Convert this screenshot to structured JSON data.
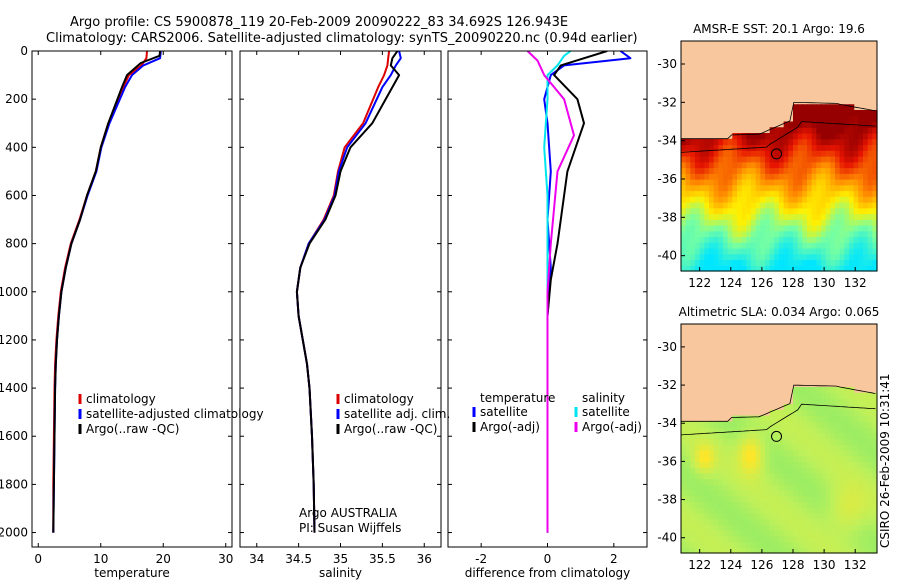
{
  "header": {
    "title_line1": "Argo profile: CS 5900878_119 20-Feb-2009 20090222_83 34.692S 126.943E",
    "title_line2": "Climatology: CARS2006. Satellite-adjusted climatology: synTS_20090220.nc (0.94d earlier)"
  },
  "side_label": "CSIRO 26-Feb-2009 10:31:41",
  "colors": {
    "climatology": "#dd0000",
    "satellite": "#0000ff",
    "argo": "#000000",
    "sal_sat": "#00e5ee",
    "sal_argo": "#ee00ee",
    "land": "#f9c79d"
  },
  "chart_data": [
    {
      "type": "line",
      "id": "temperature",
      "xlabel": "temperature",
      "ylabel": "",
      "xlim": [
        -1,
        31
      ],
      "ylim": [
        2060,
        0
      ],
      "y_reversed": true,
      "xticks": [
        0,
        10,
        20,
        30
      ],
      "xtick_labels": [
        "0",
        "10",
        "20",
        "30"
      ],
      "yticks": [
        0,
        200,
        400,
        600,
        800,
        1000,
        1200,
        1400,
        1600,
        1800,
        2000
      ],
      "ytick_labels": [
        "0",
        "200",
        "400",
        "600",
        "800",
        "1000",
        "1200",
        "1400",
        "1600",
        "1800",
        "2000"
      ],
      "legend": {
        "placement": "lower-right",
        "entries": [
          "climatology",
          "satellite-adjusted climatology",
          "Argo(..raw -QC)"
        ]
      },
      "series": [
        {
          "name": "climatology",
          "color": "#dd0000",
          "x": [
            17.4,
            17.3,
            16.5,
            14.5,
            13.6,
            11.2,
            10.0,
            9.2,
            7.8,
            6.6,
            5.2,
            4.3,
            3.6,
            3.2,
            2.9,
            2.7,
            2.6,
            2.5,
            2.4,
            2.4
          ],
          "y": [
            0,
            30,
            60,
            100,
            150,
            300,
            400,
            500,
            600,
            700,
            800,
            900,
            1000,
            1100,
            1200,
            1300,
            1400,
            1600,
            1800,
            2000
          ]
        },
        {
          "name": "satellite-adjusted climatology",
          "color": "#0000ff",
          "x": [
            19.6,
            19.5,
            16.8,
            15.0,
            13.9,
            11.4,
            10.1,
            9.3,
            7.9,
            6.7,
            5.3,
            4.4,
            3.7,
            3.3,
            3.0,
            2.8,
            2.7,
            2.6,
            2.5,
            2.4
          ],
          "y": [
            0,
            30,
            60,
            100,
            150,
            300,
            400,
            500,
            600,
            700,
            800,
            900,
            1000,
            1100,
            1200,
            1300,
            1400,
            1600,
            1800,
            2000
          ]
        },
        {
          "name": "Argo(..raw -QC)",
          "color": "#000000",
          "x": [
            19.5,
            19.4,
            16.4,
            14.2,
            13.4,
            11.2,
            10.0,
            9.2,
            7.8,
            6.7,
            5.3,
            4.4,
            3.7,
            3.3,
            3.0,
            2.8,
            2.7,
            2.6,
            2.5,
            2.4
          ],
          "y": [
            0,
            20,
            50,
            100,
            150,
            300,
            400,
            500,
            600,
            700,
            800,
            900,
            1000,
            1100,
            1200,
            1300,
            1400,
            1600,
            1800,
            2000
          ]
        }
      ]
    },
    {
      "type": "line",
      "id": "salinity",
      "xlabel": "salinity",
      "ylabel": "",
      "xlim": [
        33.8,
        36.2
      ],
      "ylim": [
        2060,
        0
      ],
      "y_reversed": true,
      "xticks": [
        34,
        34.5,
        35,
        35.5,
        36
      ],
      "xtick_labels": [
        "34",
        "34.5",
        "35",
        "35.5",
        "36"
      ],
      "legend": {
        "placement": "lower-right",
        "entries": [
          "climatology",
          "satellite adj. clim.",
          "Argo(..raw -QC)"
        ]
      },
      "annotations": [
        "Argo AUSTRALIA",
        "PI: Susan Wijffels"
      ],
      "series": [
        {
          "name": "climatology",
          "color": "#dd0000",
          "x": [
            35.58,
            35.57,
            35.56,
            35.52,
            35.45,
            35.27,
            35.05,
            34.97,
            34.92,
            34.8,
            34.62,
            34.52,
            34.48,
            34.5,
            34.55,
            34.6,
            34.63,
            34.66,
            34.68,
            34.69
          ],
          "y": [
            0,
            30,
            60,
            100,
            150,
            300,
            400,
            500,
            600,
            700,
            800,
            900,
            1000,
            1100,
            1200,
            1300,
            1400,
            1600,
            1800,
            2000
          ]
        },
        {
          "name": "satellite adj. clim.",
          "color": "#0000ff",
          "x": [
            35.7,
            35.72,
            35.66,
            35.6,
            35.5,
            35.3,
            35.08,
            34.98,
            34.93,
            34.81,
            34.62,
            34.52,
            34.48,
            34.5,
            34.55,
            34.6,
            34.63,
            34.66,
            34.68,
            34.69
          ],
          "y": [
            0,
            30,
            60,
            100,
            150,
            300,
            400,
            500,
            600,
            700,
            800,
            900,
            1000,
            1100,
            1200,
            1300,
            1400,
            1600,
            1800,
            2000
          ]
        },
        {
          "name": "Argo(..raw -QC)",
          "color": "#000000",
          "x": [
            35.68,
            35.62,
            35.6,
            35.7,
            35.62,
            35.38,
            35.12,
            35.0,
            34.94,
            34.82,
            34.63,
            34.52,
            34.48,
            34.5,
            34.55,
            34.6,
            34.63,
            34.66,
            34.68,
            34.69
          ],
          "y": [
            0,
            30,
            60,
            100,
            150,
            300,
            400,
            500,
            600,
            700,
            800,
            900,
            1000,
            1100,
            1200,
            1300,
            1400,
            1600,
            1800,
            2000
          ]
        }
      ]
    },
    {
      "type": "line",
      "id": "difference",
      "xlabel": "difference from climatology",
      "ylabel": "",
      "xlim": [
        -3,
        3
      ],
      "ylim": [
        2060,
        0
      ],
      "y_reversed": true,
      "xticks": [
        -2,
        0,
        2
      ],
      "xtick_labels": [
        "-2",
        "0",
        "2"
      ],
      "legend": {
        "placement": "center-left",
        "headers": [
          "temperature",
          "salinity"
        ],
        "entries": [
          "satellite",
          "Argo(-adj)",
          "satellite",
          "Argo(-adj)"
        ]
      },
      "series": [
        {
          "name": "temperature satellite",
          "color": "#0000ff",
          "x": [
            2.2,
            2.5,
            0.5,
            0.1,
            -0.1,
            0.0,
            0.1,
            0.0,
            0.1,
            0.0,
            0.0,
            0.0,
            0.0,
            0.0
          ],
          "y": [
            0,
            30,
            60,
            100,
            200,
            300,
            500,
            700,
            900,
            1100,
            1300,
            1500,
            1800,
            2000
          ]
        },
        {
          "name": "temperature Argo(-adj)",
          "color": "#000000",
          "x": [
            1.8,
            0.4,
            0.2,
            0.9,
            1.1,
            0.6,
            0.4,
            0.3,
            0.1,
            0.0,
            0.0,
            0.0,
            0.0
          ],
          "y": [
            0,
            60,
            100,
            200,
            300,
            500,
            700,
            800,
            950,
            1100,
            1300,
            1600,
            2000
          ]
        },
        {
          "name": "salinity satellite",
          "color": "#00e5ee",
          "x": [
            0.7,
            0.5,
            0.3,
            0.0,
            0.0,
            -0.1,
            0.0,
            0.0,
            0.0,
            0.0,
            0.0
          ],
          "y": [
            0,
            20,
            60,
            100,
            200,
            400,
            600,
            900,
            1200,
            1600,
            2000
          ]
        },
        {
          "name": "salinity Argo(-adj)",
          "color": "#ee00ee",
          "x": [
            -0.6,
            -0.3,
            -0.1,
            0.5,
            0.8,
            0.3,
            0.1,
            0.0,
            0.0,
            0.0
          ],
          "y": [
            0,
            40,
            100,
            200,
            350,
            500,
            800,
            1000,
            1400,
            2000
          ]
        }
      ]
    },
    {
      "type": "heatmap",
      "id": "sst-map",
      "title": "AMSR-E SST: 20.1 Argo: 19.6",
      "xlim": [
        120.8,
        133.4
      ],
      "ylim": [
        -40.8,
        -28.8
      ],
      "xticks": [
        122,
        124,
        126,
        128,
        130,
        132
      ],
      "xtick_labels": [
        "122",
        "124",
        "126",
        "128",
        "130",
        "132"
      ],
      "yticks": [
        -30,
        -32,
        -34,
        -36,
        -38,
        -40
      ],
      "ytick_labels": [
        "-30",
        "-32",
        "-34",
        "-36",
        "-38",
        "-40"
      ],
      "float_position": [
        126.94,
        -34.69
      ]
    },
    {
      "type": "heatmap",
      "id": "sla-map",
      "title": "Altimetric SLA: 0.034 Argo: 0.065",
      "xlim": [
        120.8,
        133.4
      ],
      "ylim": [
        -40.8,
        -28.8
      ],
      "xticks": [
        122,
        124,
        126,
        128,
        130,
        132
      ],
      "xtick_labels": [
        "122",
        "124",
        "126",
        "128",
        "130",
        "132"
      ],
      "yticks": [
        -30,
        -32,
        -34,
        -36,
        -38,
        -40
      ],
      "ytick_labels": [
        "-30",
        "-32",
        "-34",
        "-36",
        "-38",
        "-40"
      ],
      "float_position": [
        126.94,
        -34.69
      ]
    }
  ]
}
